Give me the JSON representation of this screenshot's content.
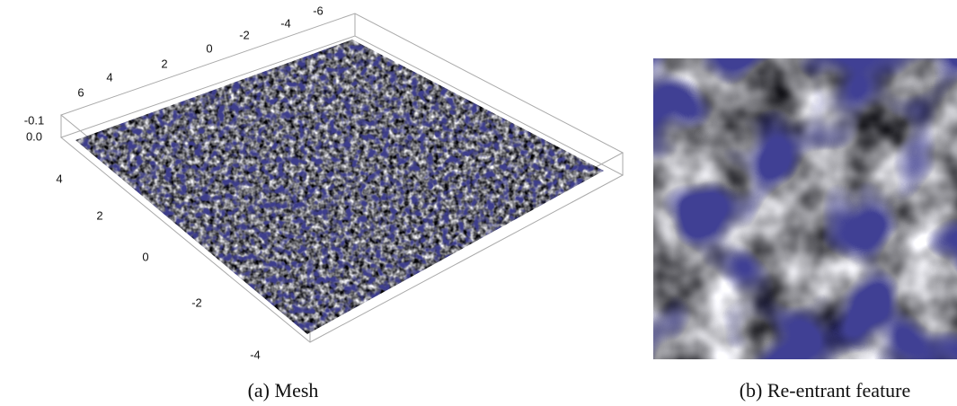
{
  "figure": {
    "panels": [
      {
        "caption": "(a) Mesh",
        "axes": {
          "top_ticks": [
            "6",
            "4",
            "2",
            "0",
            "-2",
            "-4",
            "-6"
          ],
          "vertical_ticks": [
            "-0.1",
            "0.0"
          ],
          "left_ticks": [
            "4",
            "2",
            "0",
            "-2",
            "-4"
          ]
        }
      },
      {
        "caption": "(b) Re-entrant feature"
      }
    ]
  }
}
